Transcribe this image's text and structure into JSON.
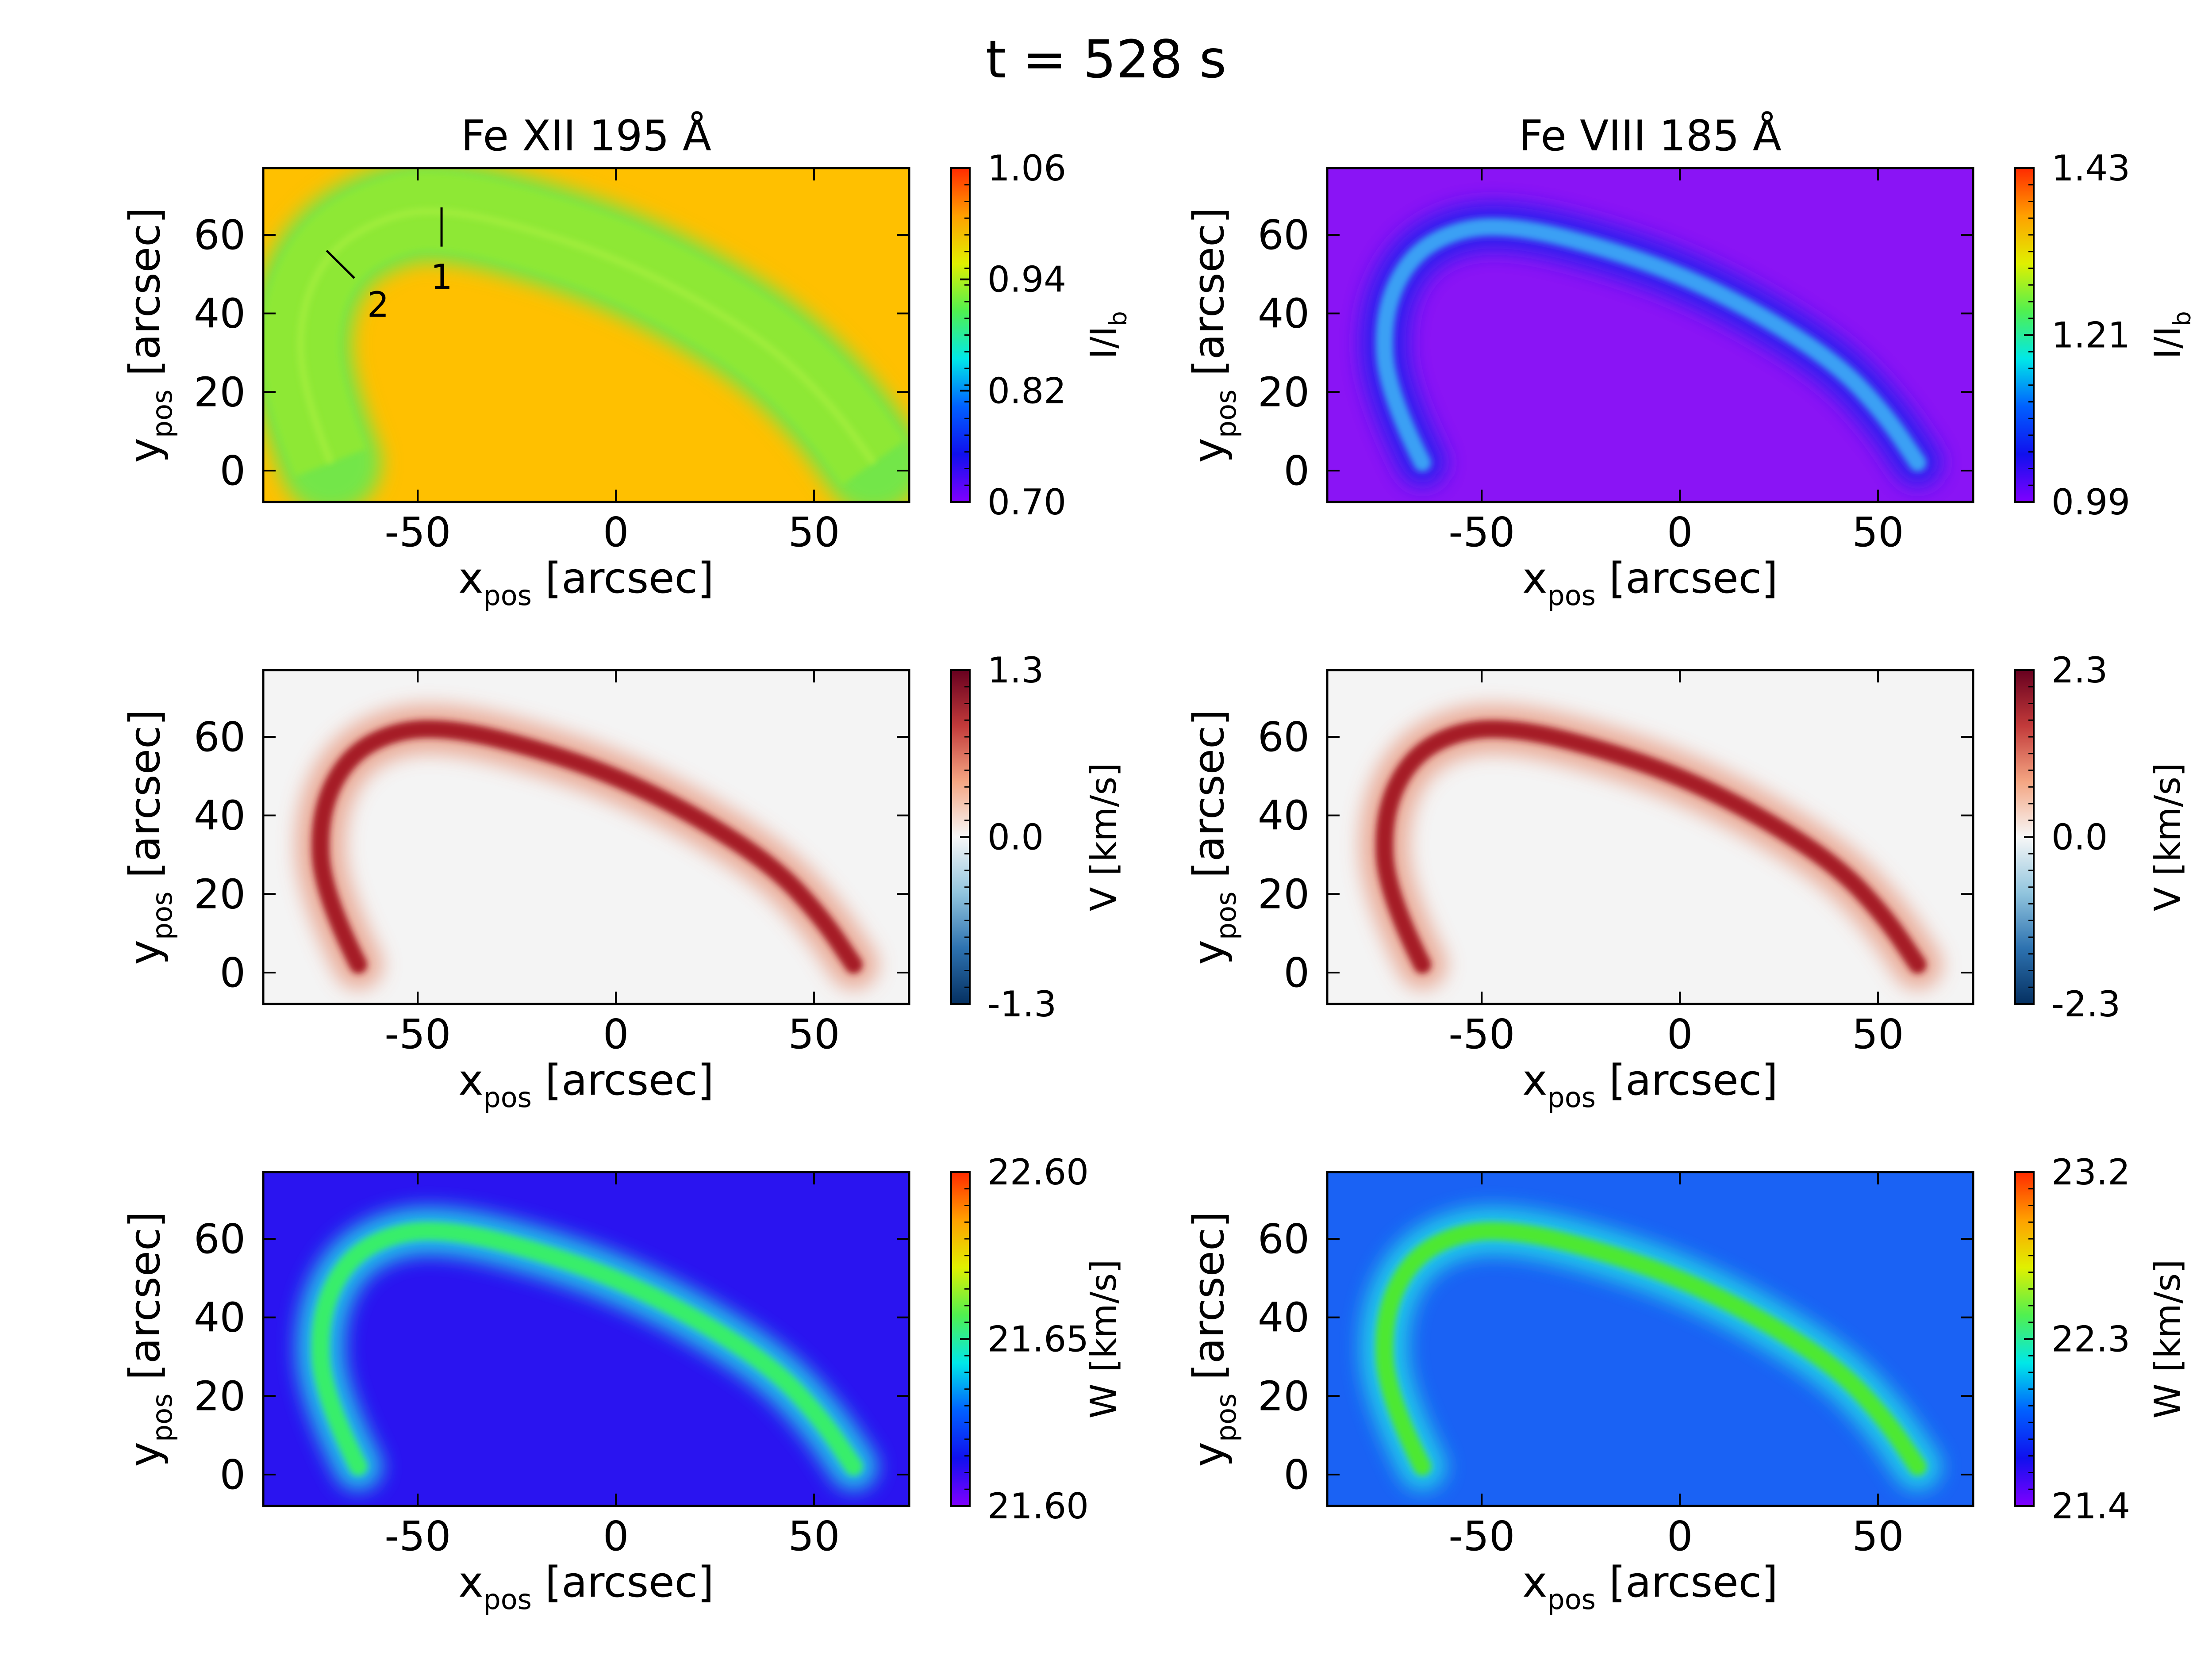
{
  "figure": {
    "title": "t =  528 s"
  },
  "chart_data": [
    {
      "id": "p1",
      "type": "heatmap",
      "title": "Fe XII 195 Å",
      "colormap": "rainbow",
      "background_color": "#ffc000",
      "loop_color": "#8ee836",
      "loop_edge_color": "#73e64a",
      "xlabel": "x",
      "xlabel_sub": "pos",
      "xlabel_unit": " [arcsec]",
      "ylabel": "y",
      "ylabel_sub": "pos",
      "ylabel_unit": " [arcsec]",
      "xlim": [
        -89,
        74
      ],
      "ylim": [
        -8,
        77
      ],
      "xticks": [
        -50,
        0,
        50
      ],
      "xtick_labels": [
        "-50",
        "0",
        "50"
      ],
      "yticks": [
        0,
        20,
        40,
        60
      ],
      "ytick_labels": [
        "0",
        "20",
        "40",
        "60"
      ],
      "cbar_label": "I/I",
      "cbar_label_sub": "b",
      "cbar_ticks": [
        "1.06",
        "0.94",
        "0.82",
        "0.70"
      ],
      "annotations": [
        {
          "label": "1",
          "line": [
            [
              -44,
              67
            ],
            [
              -44,
              57
            ]
          ],
          "text_at": [
            -44,
            49
          ]
        },
        {
          "label": "2",
          "line": [
            [
              -73,
              56
            ],
            [
              -66,
              49
            ]
          ],
          "text_at": [
            -60,
            42
          ]
        }
      ]
    },
    {
      "id": "p2",
      "type": "heatmap",
      "title": "Fe VIII 185 Å",
      "colormap": "rainbow",
      "background_color": "#8a14f5",
      "loop_color": "#3aa0f4",
      "loop_edge_color": "#2222ee",
      "xlabel": "x",
      "xlabel_sub": "pos",
      "xlabel_unit": " [arcsec]",
      "ylabel": "y",
      "ylabel_sub": "pos",
      "ylabel_unit": " [arcsec]",
      "xlim": [
        -89,
        74
      ],
      "ylim": [
        -8,
        77
      ],
      "xticks": [
        -50,
        0,
        50
      ],
      "xtick_labels": [
        "-50",
        "0",
        "50"
      ],
      "yticks": [
        0,
        20,
        40,
        60
      ],
      "ytick_labels": [
        "0",
        "20",
        "40",
        "60"
      ],
      "cbar_label": "I/I",
      "cbar_label_sub": "b",
      "cbar_ticks": [
        "1.43",
        "1.21",
        "0.99"
      ]
    },
    {
      "id": "p3",
      "type": "heatmap",
      "title": "",
      "colormap": "RdBu_r",
      "background_color": "#f4f4f4",
      "loop_color": "#a61c28",
      "loop_edge_color": "#e8a08a",
      "xlabel": "x",
      "xlabel_sub": "pos",
      "xlabel_unit": " [arcsec]",
      "ylabel": "y",
      "ylabel_sub": "pos",
      "ylabel_unit": " [arcsec]",
      "xlim": [
        -89,
        74
      ],
      "ylim": [
        -8,
        77
      ],
      "xticks": [
        -50,
        0,
        50
      ],
      "xtick_labels": [
        "-50",
        "0",
        "50"
      ],
      "yticks": [
        0,
        20,
        40,
        60
      ],
      "ytick_labels": [
        "0",
        "20",
        "40",
        "60"
      ],
      "cbar_label": "V [km/s]",
      "cbar_label_sub": "",
      "cbar_ticks": [
        "1.3",
        "0.0",
        "-1.3"
      ]
    },
    {
      "id": "p4",
      "type": "heatmap",
      "title": "",
      "colormap": "RdBu_r",
      "background_color": "#f4f4f4",
      "loop_color": "#a61c28",
      "loop_edge_color": "#e8a08a",
      "xlabel": "x",
      "xlabel_sub": "pos",
      "xlabel_unit": " [arcsec]",
      "ylabel": "y",
      "ylabel_sub": "pos",
      "ylabel_unit": " [arcsec]",
      "xlim": [
        -89,
        74
      ],
      "ylim": [
        -8,
        77
      ],
      "xticks": [
        -50,
        0,
        50
      ],
      "xtick_labels": [
        "-50",
        "0",
        "50"
      ],
      "yticks": [
        0,
        20,
        40,
        60
      ],
      "ytick_labels": [
        "0",
        "20",
        "40",
        "60"
      ],
      "cbar_label": "V [km/s]",
      "cbar_label_sub": "",
      "cbar_ticks": [
        "2.3",
        "0.0",
        "-2.3"
      ]
    },
    {
      "id": "p5",
      "type": "heatmap",
      "title": "",
      "colormap": "rainbow",
      "background_color": "#2a14f0",
      "loop_color": "#38ee6a",
      "loop_edge_color": "#22d8e8",
      "xlabel": "x",
      "xlabel_sub": "pos",
      "xlabel_unit": " [arcsec]",
      "ylabel": "y",
      "ylabel_sub": "pos",
      "ylabel_unit": " [arcsec]",
      "xlim": [
        -89,
        74
      ],
      "ylim": [
        -8,
        77
      ],
      "xticks": [
        -50,
        0,
        50
      ],
      "xtick_labels": [
        "-50",
        "0",
        "50"
      ],
      "yticks": [
        0,
        20,
        40,
        60
      ],
      "ytick_labels": [
        "0",
        "20",
        "40",
        "60"
      ],
      "cbar_label": "W [km/s]",
      "cbar_label_sub": "",
      "cbar_ticks": [
        "22.60",
        "21.65",
        "21.60"
      ]
    },
    {
      "id": "p6",
      "type": "heatmap",
      "title": "",
      "colormap": "rainbow",
      "background_color": "#1a62f4",
      "loop_color": "#4ee830",
      "loop_edge_color": "#22d8e8",
      "xlabel": "x",
      "xlabel_sub": "pos",
      "xlabel_unit": " [arcsec]",
      "ylabel": "y",
      "ylabel_sub": "pos",
      "ylabel_unit": " [arcsec]",
      "xlim": [
        -89,
        74
      ],
      "ylim": [
        -8,
        77
      ],
      "xticks": [
        -50,
        0,
        50
      ],
      "xtick_labels": [
        "-50",
        "0",
        "50"
      ],
      "yticks": [
        0,
        20,
        40,
        60
      ],
      "ytick_labels": [
        "0",
        "20",
        "40",
        "60"
      ],
      "cbar_label": "W [km/s]",
      "cbar_label_sub": "",
      "cbar_ticks": [
        "23.2",
        "22.3",
        "21.4"
      ]
    }
  ]
}
